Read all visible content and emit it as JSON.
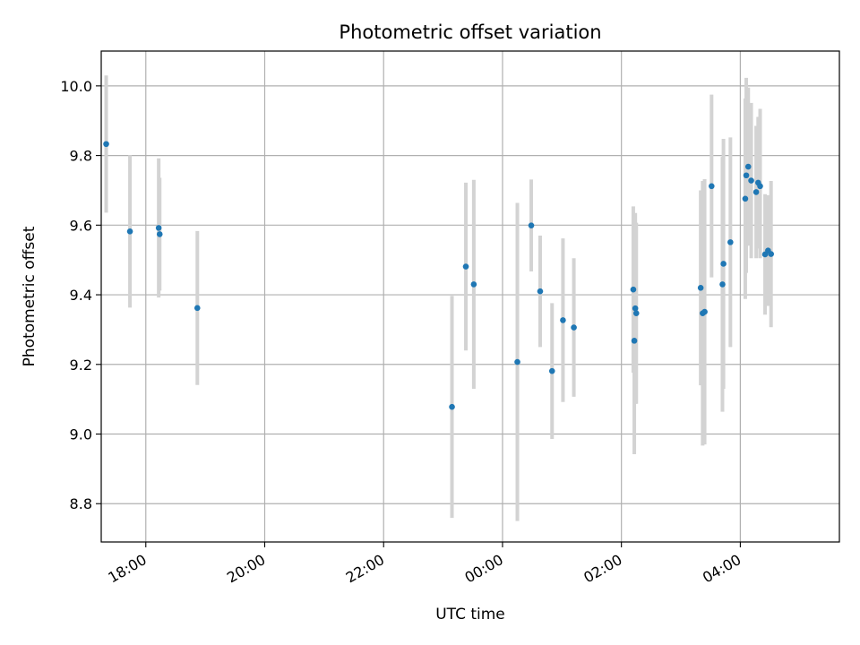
{
  "chart_data": {
    "type": "scatter",
    "title": "Photometric offset variation",
    "xlabel": "UTC time",
    "ylabel": "Photometric offset",
    "x_scale": "time",
    "x_ticks": [
      "18:00",
      "20:00",
      "22:00",
      "00:00",
      "02:00",
      "04:00"
    ],
    "x_tick_values": [
      "18:00",
      "20:00",
      "22:00",
      "24:00",
      "26:00",
      "28:00"
    ],
    "xlim": [
      "17:15",
      "29:40"
    ],
    "y_ticks": [
      "8.8",
      "9.0",
      "9.2",
      "9.4",
      "9.6",
      "9.8",
      "10.0"
    ],
    "ylim": [
      8.69,
      10.1
    ],
    "grid": true,
    "colors": {
      "points": "#1f77b4",
      "errorbars": "#d3d3d3",
      "grid": "#b0b0b0"
    },
    "points": [
      {
        "t": "17:20",
        "y": 9.833,
        "lo": 9.636,
        "hi": 10.03
      },
      {
        "t": "17:44",
        "y": 9.582,
        "lo": 9.363,
        "hi": 9.801
      },
      {
        "t": "18:13",
        "y": 9.592,
        "lo": 9.392,
        "hi": 9.792
      },
      {
        "t": "18:14",
        "y": 9.574,
        "lo": 9.412,
        "hi": 9.736
      },
      {
        "t": "18:52",
        "y": 9.362,
        "lo": 9.141,
        "hi": 9.583
      },
      {
        "t": "23:09",
        "y": 9.078,
        "lo": 8.759,
        "hi": 9.397
      },
      {
        "t": "23:23",
        "y": 9.481,
        "lo": 9.24,
        "hi": 9.722
      },
      {
        "t": "23:31",
        "y": 9.43,
        "lo": 9.13,
        "hi": 9.73
      },
      {
        "t": "24:15",
        "y": 9.207,
        "lo": 8.75,
        "hi": 9.664
      },
      {
        "t": "24:29",
        "y": 9.599,
        "lo": 9.467,
        "hi": 9.731
      },
      {
        "t": "24:38",
        "y": 9.41,
        "lo": 9.25,
        "hi": 9.57
      },
      {
        "t": "24:50",
        "y": 9.181,
        "lo": 8.986,
        "hi": 9.376
      },
      {
        "t": "25:01",
        "y": 9.327,
        "lo": 9.092,
        "hi": 9.562
      },
      {
        "t": "25:12",
        "y": 9.306,
        "lo": 9.107,
        "hi": 9.505
      },
      {
        "t": "26:12",
        "y": 9.415,
        "lo": 9.176,
        "hi": 9.654
      },
      {
        "t": "26:13",
        "y": 9.268,
        "lo": 8.942,
        "hi": 9.594
      },
      {
        "t": "26:14",
        "y": 9.361,
        "lo": 9.087,
        "hi": 9.635
      },
      {
        "t": "26:15",
        "y": 9.347,
        "lo": 9.087,
        "hi": 9.607
      },
      {
        "t": "27:20",
        "y": 9.42,
        "lo": 9.14,
        "hi": 9.7
      },
      {
        "t": "27:22",
        "y": 9.347,
        "lo": 8.967,
        "hi": 9.727
      },
      {
        "t": "27:24",
        "y": 9.351,
        "lo": 8.97,
        "hi": 9.732
      },
      {
        "t": "27:31",
        "y": 9.712,
        "lo": 9.45,
        "hi": 9.975
      },
      {
        "t": "27:42",
        "y": 9.43,
        "lo": 9.064,
        "hi": 9.796
      },
      {
        "t": "27:43",
        "y": 9.489,
        "lo": 9.13,
        "hi": 9.848
      },
      {
        "t": "27:50",
        "y": 9.551,
        "lo": 9.25,
        "hi": 9.852
      },
      {
        "t": "28:05",
        "y": 9.676,
        "lo": 9.388,
        "hi": 9.964
      },
      {
        "t": "28:06",
        "y": 9.743,
        "lo": 9.463,
        "hi": 10.023
      },
      {
        "t": "28:08",
        "y": 9.768,
        "lo": 9.541,
        "hi": 9.995
      },
      {
        "t": "28:11",
        "y": 9.728,
        "lo": 9.505,
        "hi": 9.951
      },
      {
        "t": "28:16",
        "y": 9.695,
        "lo": 9.505,
        "hi": 9.885
      },
      {
        "t": "28:18",
        "y": 9.722,
        "lo": 9.533,
        "hi": 9.911
      },
      {
        "t": "28:20",
        "y": 9.712,
        "lo": 9.505,
        "hi": 9.934
      },
      {
        "t": "28:25",
        "y": 9.516,
        "lo": 9.343,
        "hi": 9.689
      },
      {
        "t": "28:28",
        "y": 9.527,
        "lo": 9.368,
        "hi": 9.686
      },
      {
        "t": "28:31",
        "y": 9.517,
        "lo": 9.307,
        "hi": 9.727
      }
    ]
  }
}
